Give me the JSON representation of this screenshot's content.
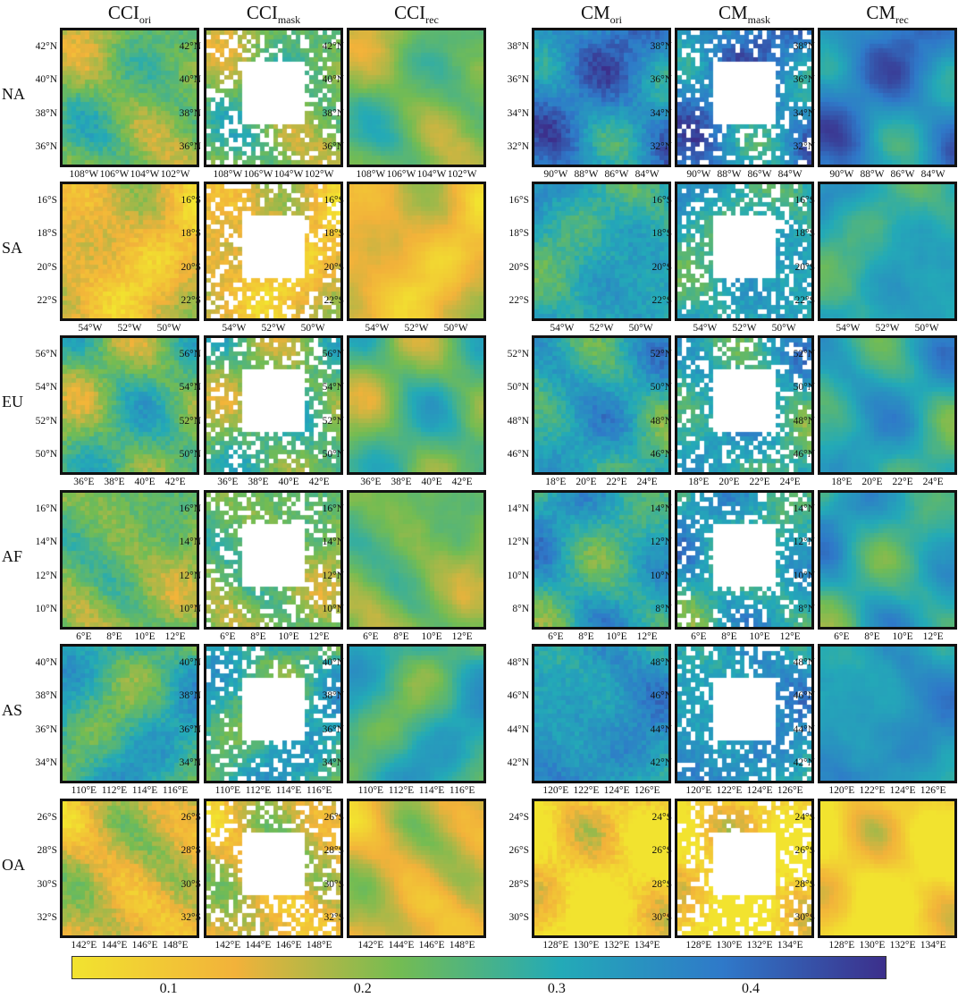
{
  "column_titles": [
    {
      "base": "CCI",
      "sub": "ori"
    },
    {
      "base": "CCI",
      "sub": "mask"
    },
    {
      "base": "CCI",
      "sub": "rec"
    },
    {
      "base": "CM",
      "sub": "ori"
    },
    {
      "base": "CM",
      "sub": "mask"
    },
    {
      "base": "CM",
      "sub": "rec"
    }
  ],
  "row_labels": [
    "NA",
    "SA",
    "EU",
    "AF",
    "AS",
    "OA"
  ],
  "colormap": [
    "#f2e32f",
    "#f2b23a",
    "#74bc52",
    "#23aab7",
    "#2f79c9",
    "#3c2f8b"
  ],
  "chart_data": [
    {
      "type": "heatmap",
      "region": "NA",
      "cci": {
        "yticks": [
          "42°N",
          "40°N",
          "38°N",
          "36°N"
        ],
        "xticks": [
          "108°W",
          "106°W",
          "104°W",
          "102°W"
        ],
        "approx_mean": 0.22
      },
      "cm": {
        "yticks": [
          "38°N",
          "36°N",
          "34°N",
          "32°N"
        ],
        "xticks": [
          "90°W",
          "88°W",
          "86°W",
          "84°W"
        ],
        "approx_mean": 0.36
      }
    },
    {
      "type": "heatmap",
      "region": "SA",
      "cci": {
        "yticks": [
          "16°S",
          "18°S",
          "20°S",
          "22°S"
        ],
        "xticks": [
          "54°W",
          "52°W",
          "50°W"
        ],
        "approx_mean": 0.13
      },
      "cm": {
        "yticks": [
          "16°S",
          "18°S",
          "20°S",
          "22°S"
        ],
        "xticks": [
          "54°W",
          "52°W",
          "50°W"
        ],
        "approx_mean": 0.3
      }
    },
    {
      "type": "heatmap",
      "region": "EU",
      "cci": {
        "yticks": [
          "56°N",
          "54°N",
          "52°N",
          "50°N"
        ],
        "xticks": [
          "36°E",
          "38°E",
          "40°E",
          "42°E"
        ],
        "approx_mean": 0.24
      },
      "cm": {
        "yticks": [
          "52°N",
          "50°N",
          "48°N",
          "46°N"
        ],
        "xticks": [
          "18°E",
          "20°E",
          "22°E",
          "24°E"
        ],
        "approx_mean": 0.3
      }
    },
    {
      "type": "heatmap",
      "region": "AF",
      "cci": {
        "yticks": [
          "16°N",
          "14°N",
          "12°N",
          "10°N"
        ],
        "xticks": [
          "6°E",
          "8°E",
          "10°E",
          "12°E"
        ],
        "approx_mean": 0.22
      },
      "cm": {
        "yticks": [
          "14°N",
          "12°N",
          "10°N",
          "8°N"
        ],
        "xticks": [
          "6°E",
          "8°E",
          "10°E",
          "12°E"
        ],
        "approx_mean": 0.3
      }
    },
    {
      "type": "heatmap",
      "region": "AS",
      "cci": {
        "yticks": [
          "40°N",
          "38°N",
          "36°N",
          "34°N"
        ],
        "xticks": [
          "110°E",
          "112°E",
          "114°E",
          "116°E"
        ],
        "approx_mean": 0.28
      },
      "cm": {
        "yticks": [
          "48°N",
          "46°N",
          "44°N",
          "42°N"
        ],
        "xticks": [
          "120°E",
          "122°E",
          "124°E",
          "126°E"
        ],
        "approx_mean": 0.33
      }
    },
    {
      "type": "heatmap",
      "region": "OA",
      "cci": {
        "yticks": [
          "26°S",
          "28°S",
          "30°S",
          "32°S"
        ],
        "xticks": [
          "142°E",
          "144°E",
          "146°E",
          "148°E"
        ],
        "approx_mean": 0.15
      },
      "cm": {
        "yticks": [
          "24°S",
          "26°S",
          "28°S",
          "30°S"
        ],
        "xticks": [
          "128°E",
          "130°E",
          "132°E",
          "134°E"
        ],
        "approx_mean": 0.07
      }
    }
  ],
  "colorbar": {
    "min": 0.05,
    "max": 0.47,
    "ticks": [
      "0.1",
      "0.2",
      "0.3",
      "0.4"
    ]
  }
}
